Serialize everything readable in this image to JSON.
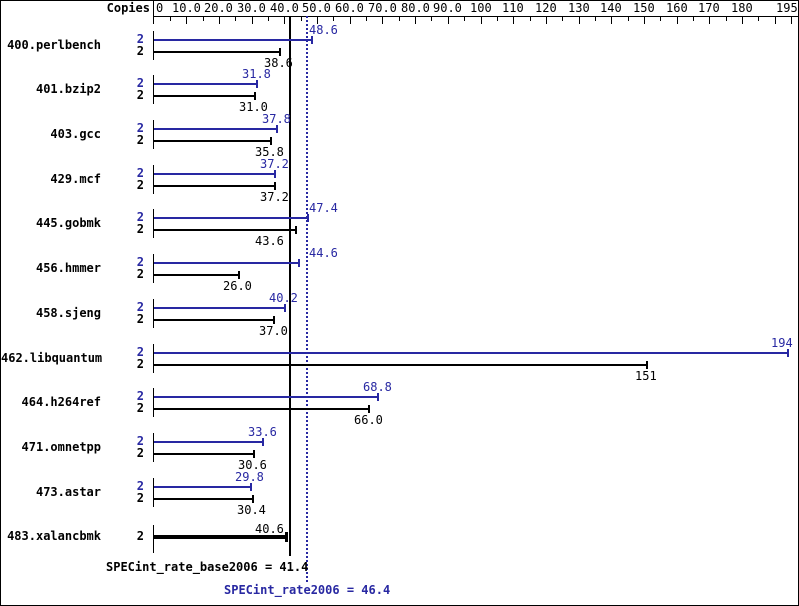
{
  "colors": {
    "peak_blue": "#2828a2",
    "base_black": "#000000",
    "background": "#ffffff"
  },
  "copies_header": "Copies",
  "chart_data": {
    "type": "bar",
    "orientation": "horizontal",
    "title": "",
    "xlabel": "",
    "xlim": [
      0,
      195
    ],
    "grid": false,
    "x_ticks": [
      {
        "v": 0,
        "label": "0"
      },
      {
        "v": 10,
        "label": "10.0"
      },
      {
        "v": 20,
        "label": "20.0"
      },
      {
        "v": 30,
        "label": "30.0"
      },
      {
        "v": 40,
        "label": "40.0"
      },
      {
        "v": 50,
        "label": "50.0"
      },
      {
        "v": 60,
        "label": "60.0"
      },
      {
        "v": 70,
        "label": "70.0"
      },
      {
        "v": 80,
        "label": "80.0"
      },
      {
        "v": 90,
        "label": "90.0"
      },
      {
        "v": 100,
        "label": "100"
      },
      {
        "v": 110,
        "label": "110"
      },
      {
        "v": 120,
        "label": "120"
      },
      {
        "v": 130,
        "label": "130"
      },
      {
        "v": 140,
        "label": "140"
      },
      {
        "v": 150,
        "label": "150"
      },
      {
        "v": 160,
        "label": "160"
      },
      {
        "v": 170,
        "label": "170"
      },
      {
        "v": 180,
        "label": "180"
      },
      {
        "v": 195,
        "label": "195"
      }
    ],
    "minor_tick_step": 5,
    "benchmarks": [
      {
        "name": "400.perlbench",
        "copies": "2",
        "peak": 48.6,
        "peak_label": "48.6",
        "base": 38.6,
        "base_label": "38.6"
      },
      {
        "name": "401.bzip2",
        "copies": "2",
        "peak": 31.8,
        "peak_label": "31.8",
        "base": 31.0,
        "base_label": "31.0"
      },
      {
        "name": "403.gcc",
        "copies": "2",
        "peak": 37.8,
        "peak_label": "37.8",
        "base": 35.8,
        "base_label": "35.8"
      },
      {
        "name": "429.mcf",
        "copies": "2",
        "peak": 37.2,
        "peak_label": "37.2",
        "base": 37.2,
        "base_label": "37.2"
      },
      {
        "name": "445.gobmk",
        "copies": "2",
        "peak": 47.4,
        "peak_label": "47.4",
        "base": 43.6,
        "base_label": "43.6"
      },
      {
        "name": "456.hmmer",
        "copies": "2",
        "peak": 44.6,
        "peak_label": "44.6",
        "base": 26.0,
        "base_label": "26.0"
      },
      {
        "name": "458.sjeng",
        "copies": "2",
        "peak": 40.2,
        "peak_label": "40.2",
        "base": 37.0,
        "base_label": "37.0"
      },
      {
        "name": "462.libquantum",
        "copies": "2",
        "peak": 194,
        "peak_label": "194",
        "base": 151,
        "base_label": "151"
      },
      {
        "name": "464.h264ref",
        "copies": "2",
        "peak": 68.8,
        "peak_label": "68.8",
        "base": 66.0,
        "base_label": "66.0"
      },
      {
        "name": "471.omnetpp",
        "copies": "2",
        "peak": 33.6,
        "peak_label": "33.6",
        "base": 30.6,
        "base_label": "30.6"
      },
      {
        "name": "473.astar",
        "copies": "2",
        "peak": 29.8,
        "peak_label": "29.8",
        "base": 30.4,
        "base_label": "30.4"
      },
      {
        "name": "483.xalancbmk",
        "copies": "2",
        "single": true,
        "base": 40.6,
        "base_label": "40.6"
      }
    ],
    "mean_lines": [
      {
        "value": 41.4,
        "style": "solid",
        "series": "base"
      },
      {
        "value": 46.4,
        "style": "dotted",
        "series": "peak"
      }
    ],
    "summary": {
      "base_text": "SPECint_rate_base2006 = 41.4",
      "peak_text": "SPECint_rate2006 = 46.4"
    }
  }
}
